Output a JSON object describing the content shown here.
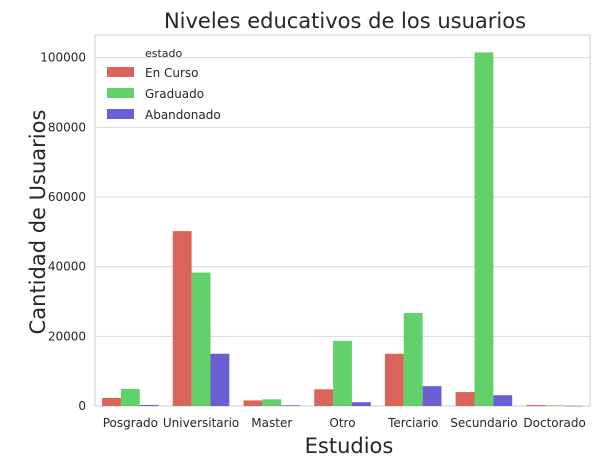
{
  "chart_data": {
    "type": "bar",
    "title": "Niveles educativos de los usuarios",
    "xlabel": "Estudios",
    "ylabel": "Cantidad de Usuarios",
    "categories": [
      "Posgrado",
      "Universitario",
      "Master",
      "Otro",
      "Terciario",
      "Secundario",
      "Doctorado"
    ],
    "series": [
      {
        "name": "En Curso",
        "color": "#d9645a",
        "values": [
          2300,
          50200,
          1600,
          4800,
          15000,
          4000,
          300
        ]
      },
      {
        "name": "Graduado",
        "color": "#63d16a",
        "values": [
          4900,
          38300,
          1900,
          18700,
          26700,
          101500,
          200
        ]
      },
      {
        "name": "Abandonado",
        "color": "#6b5fd6",
        "values": [
          300,
          15000,
          200,
          1100,
          5700,
          3100,
          50
        ]
      }
    ],
    "ylim": [
      0,
      106500
    ],
    "yticks": [
      0,
      20000,
      40000,
      60000,
      80000,
      100000
    ],
    "grid": true,
    "legend": {
      "title": "estado",
      "placement": "top-left"
    }
  }
}
